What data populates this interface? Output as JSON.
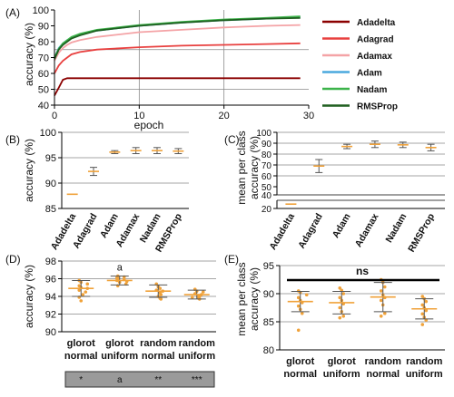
{
  "colors": {
    "orange": "#f0a23a",
    "errorbar": "#555555",
    "scatter": "#f0a23a",
    "line_colors": [
      "#8b0000",
      "#e8403f",
      "#f4a3a6",
      "#4aa8de",
      "#3cb34a",
      "#1f5f1f"
    ]
  },
  "chart_data": [
    {
      "panel": "(A)",
      "type": "line",
      "xlabel": "epoch",
      "ylabel": "accuracy (%)",
      "xlim": [
        0,
        30
      ],
      "ylim": [
        40,
        100
      ],
      "xticks": [
        "0",
        "10",
        "20",
        "30"
      ],
      "yticks": [
        "40",
        "50",
        "60",
        "70",
        "80",
        "90",
        "100"
      ],
      "grid_x": [
        10,
        20
      ],
      "grid_y": [
        50,
        75
      ],
      "legend_position": "right",
      "series": [
        {
          "name": "Adadelta",
          "x": [
            0,
            0.5,
            1,
            1.5,
            2,
            3,
            5,
            10,
            15,
            20,
            25,
            29
          ],
          "values": [
            46,
            51,
            56,
            57,
            57,
            57,
            57,
            57,
            57,
            57,
            57,
            57
          ]
        },
        {
          "name": "Adagrad",
          "x": [
            0,
            0.5,
            1,
            1.5,
            2,
            3,
            5,
            10,
            15,
            20,
            25,
            29
          ],
          "values": [
            60,
            65,
            68,
            70,
            72,
            73.5,
            75,
            76.5,
            77.5,
            78,
            78.5,
            79
          ]
        },
        {
          "name": "Adamax",
          "x": [
            0,
            0.5,
            1,
            1.5,
            2,
            3,
            5,
            10,
            15,
            20,
            25,
            29
          ],
          "values": [
            68,
            73,
            76,
            78,
            79.5,
            81,
            83,
            86,
            87.5,
            89,
            90,
            90.5
          ]
        },
        {
          "name": "Adam",
          "x": [
            0,
            0.5,
            1,
            1.5,
            2,
            3,
            5,
            10,
            15,
            20,
            25,
            29
          ],
          "values": [
            70,
            76,
            79,
            81,
            82.5,
            84.5,
            87,
            90,
            92,
            93.5,
            94.5,
            95.5
          ]
        },
        {
          "name": "Nadam",
          "x": [
            0,
            0.5,
            1,
            1.5,
            2,
            3,
            5,
            10,
            15,
            20,
            25,
            29
          ],
          "values": [
            70,
            75.5,
            79,
            81,
            83,
            85,
            87.5,
            90.5,
            92.5,
            94,
            95,
            96
          ]
        },
        {
          "name": "RMSProp",
          "x": [
            0,
            0.5,
            1,
            1.5,
            2,
            3,
            5,
            10,
            15,
            20,
            25,
            29
          ],
          "values": [
            69,
            75,
            78,
            80,
            82,
            84,
            87,
            90,
            92,
            93.5,
            94.5,
            95
          ]
        }
      ]
    },
    {
      "panel": "(B)",
      "type": "scatter",
      "ylabel": "accuracy (%)",
      "ylim": [
        85,
        100
      ],
      "yticks": [
        "85",
        "90",
        "95",
        "100"
      ],
      "grid_y": [
        90,
        95,
        100
      ],
      "categories": [
        "Adadelta",
        "Adagrad",
        "Adam",
        "Adamax",
        "Nadam",
        "RMSProp"
      ],
      "means": [
        87.8,
        92.3,
        96.1,
        96.4,
        96.4,
        96.3
      ],
      "err": [
        0,
        0.8,
        0.3,
        0.6,
        0.6,
        0.5
      ]
    },
    {
      "panel": "(C)",
      "type": "scatter",
      "ylabel_lines": [
        "mean per class",
        "accuracy (%)"
      ],
      "ylim": [
        20,
        100
      ],
      "break": [
        30,
        40
      ],
      "yticks": [
        "20",
        "40",
        "50",
        "60",
        "70",
        "80",
        "90",
        "100"
      ],
      "grid_y": [
        60,
        70,
        80,
        90,
        100
      ],
      "categories": [
        "Adadelta",
        "Adagrad",
        "Adam",
        "Adamax",
        "Nadam",
        "RMSProp"
      ],
      "means": [
        24,
        69,
        87,
        89,
        88.5,
        86
      ],
      "err": [
        0,
        6,
        2,
        3,
        2.5,
        3
      ]
    },
    {
      "panel": "(D)",
      "type": "scatter",
      "ylabel": "accuracy (%)",
      "ylim": [
        90,
        98
      ],
      "yticks": [
        "90",
        "92",
        "94",
        "96",
        "98"
      ],
      "grid_y": [
        92,
        94,
        96,
        98
      ],
      "categories": [
        [
          "glorot",
          "normal"
        ],
        [
          "glorot",
          "uniform"
        ],
        [
          "random",
          "normal"
        ],
        [
          "random",
          "uniform"
        ]
      ],
      "means": [
        94.9,
        95.8,
        94.6,
        94.2
      ],
      "err": [
        0.9,
        0.5,
        0.7,
        0.5
      ],
      "annotation": "a",
      "annotation_index": 1,
      "points": [
        [
          95.8,
          95.6,
          95.4,
          95.2,
          95.0,
          94.9,
          94.7,
          94.5,
          94.2,
          93.9,
          93.5
        ],
        [
          96.3,
          96.2,
          96.1,
          96.0,
          95.9,
          95.8,
          95.7,
          95.6,
          95.4,
          95.2
        ],
        [
          95.4,
          95.1,
          94.9,
          94.7,
          94.6,
          94.4,
          94.2,
          94.0,
          93.8,
          93.7
        ],
        [
          94.8,
          94.6,
          94.5,
          94.3,
          94.2,
          94.1,
          94.0,
          93.9,
          93.8,
          93.7
        ]
      ],
      "significance": [
        "*",
        "a",
        "**",
        "***"
      ]
    },
    {
      "panel": "(E)",
      "type": "scatter",
      "ylabel_lines": [
        "mean per class",
        "accuracy (%)"
      ],
      "ylim": [
        80,
        95
      ],
      "yticks": [
        "80",
        "85",
        "90",
        "95"
      ],
      "grid_y": [
        85,
        90,
        95
      ],
      "categories": [
        [
          "glorot",
          "normal"
        ],
        [
          "glorot",
          "uniform"
        ],
        [
          "random",
          "normal"
        ],
        [
          "random",
          "uniform"
        ]
      ],
      "means": [
        88.6,
        88.4,
        89.4,
        87.3
      ],
      "err": [
        1.8,
        2.0,
        2.6,
        1.8
      ],
      "annotation": "ns",
      "points": [
        [
          90.5,
          90.2,
          89.8,
          89.3,
          88.8,
          88.4,
          87.8,
          87.2,
          86.5,
          83.5
        ],
        [
          91.0,
          90.6,
          90.0,
          89.3,
          88.8,
          88.2,
          87.5,
          86.8,
          86.0,
          85.7
        ],
        [
          92.5,
          92.0,
          91.2,
          90.5,
          89.8,
          89.3,
          88.8,
          88.0,
          86.5,
          86.0
        ],
        [
          89.5,
          89.1,
          88.6,
          88.0,
          87.5,
          87.0,
          86.4,
          85.8,
          85.3,
          84.5
        ]
      ]
    }
  ]
}
